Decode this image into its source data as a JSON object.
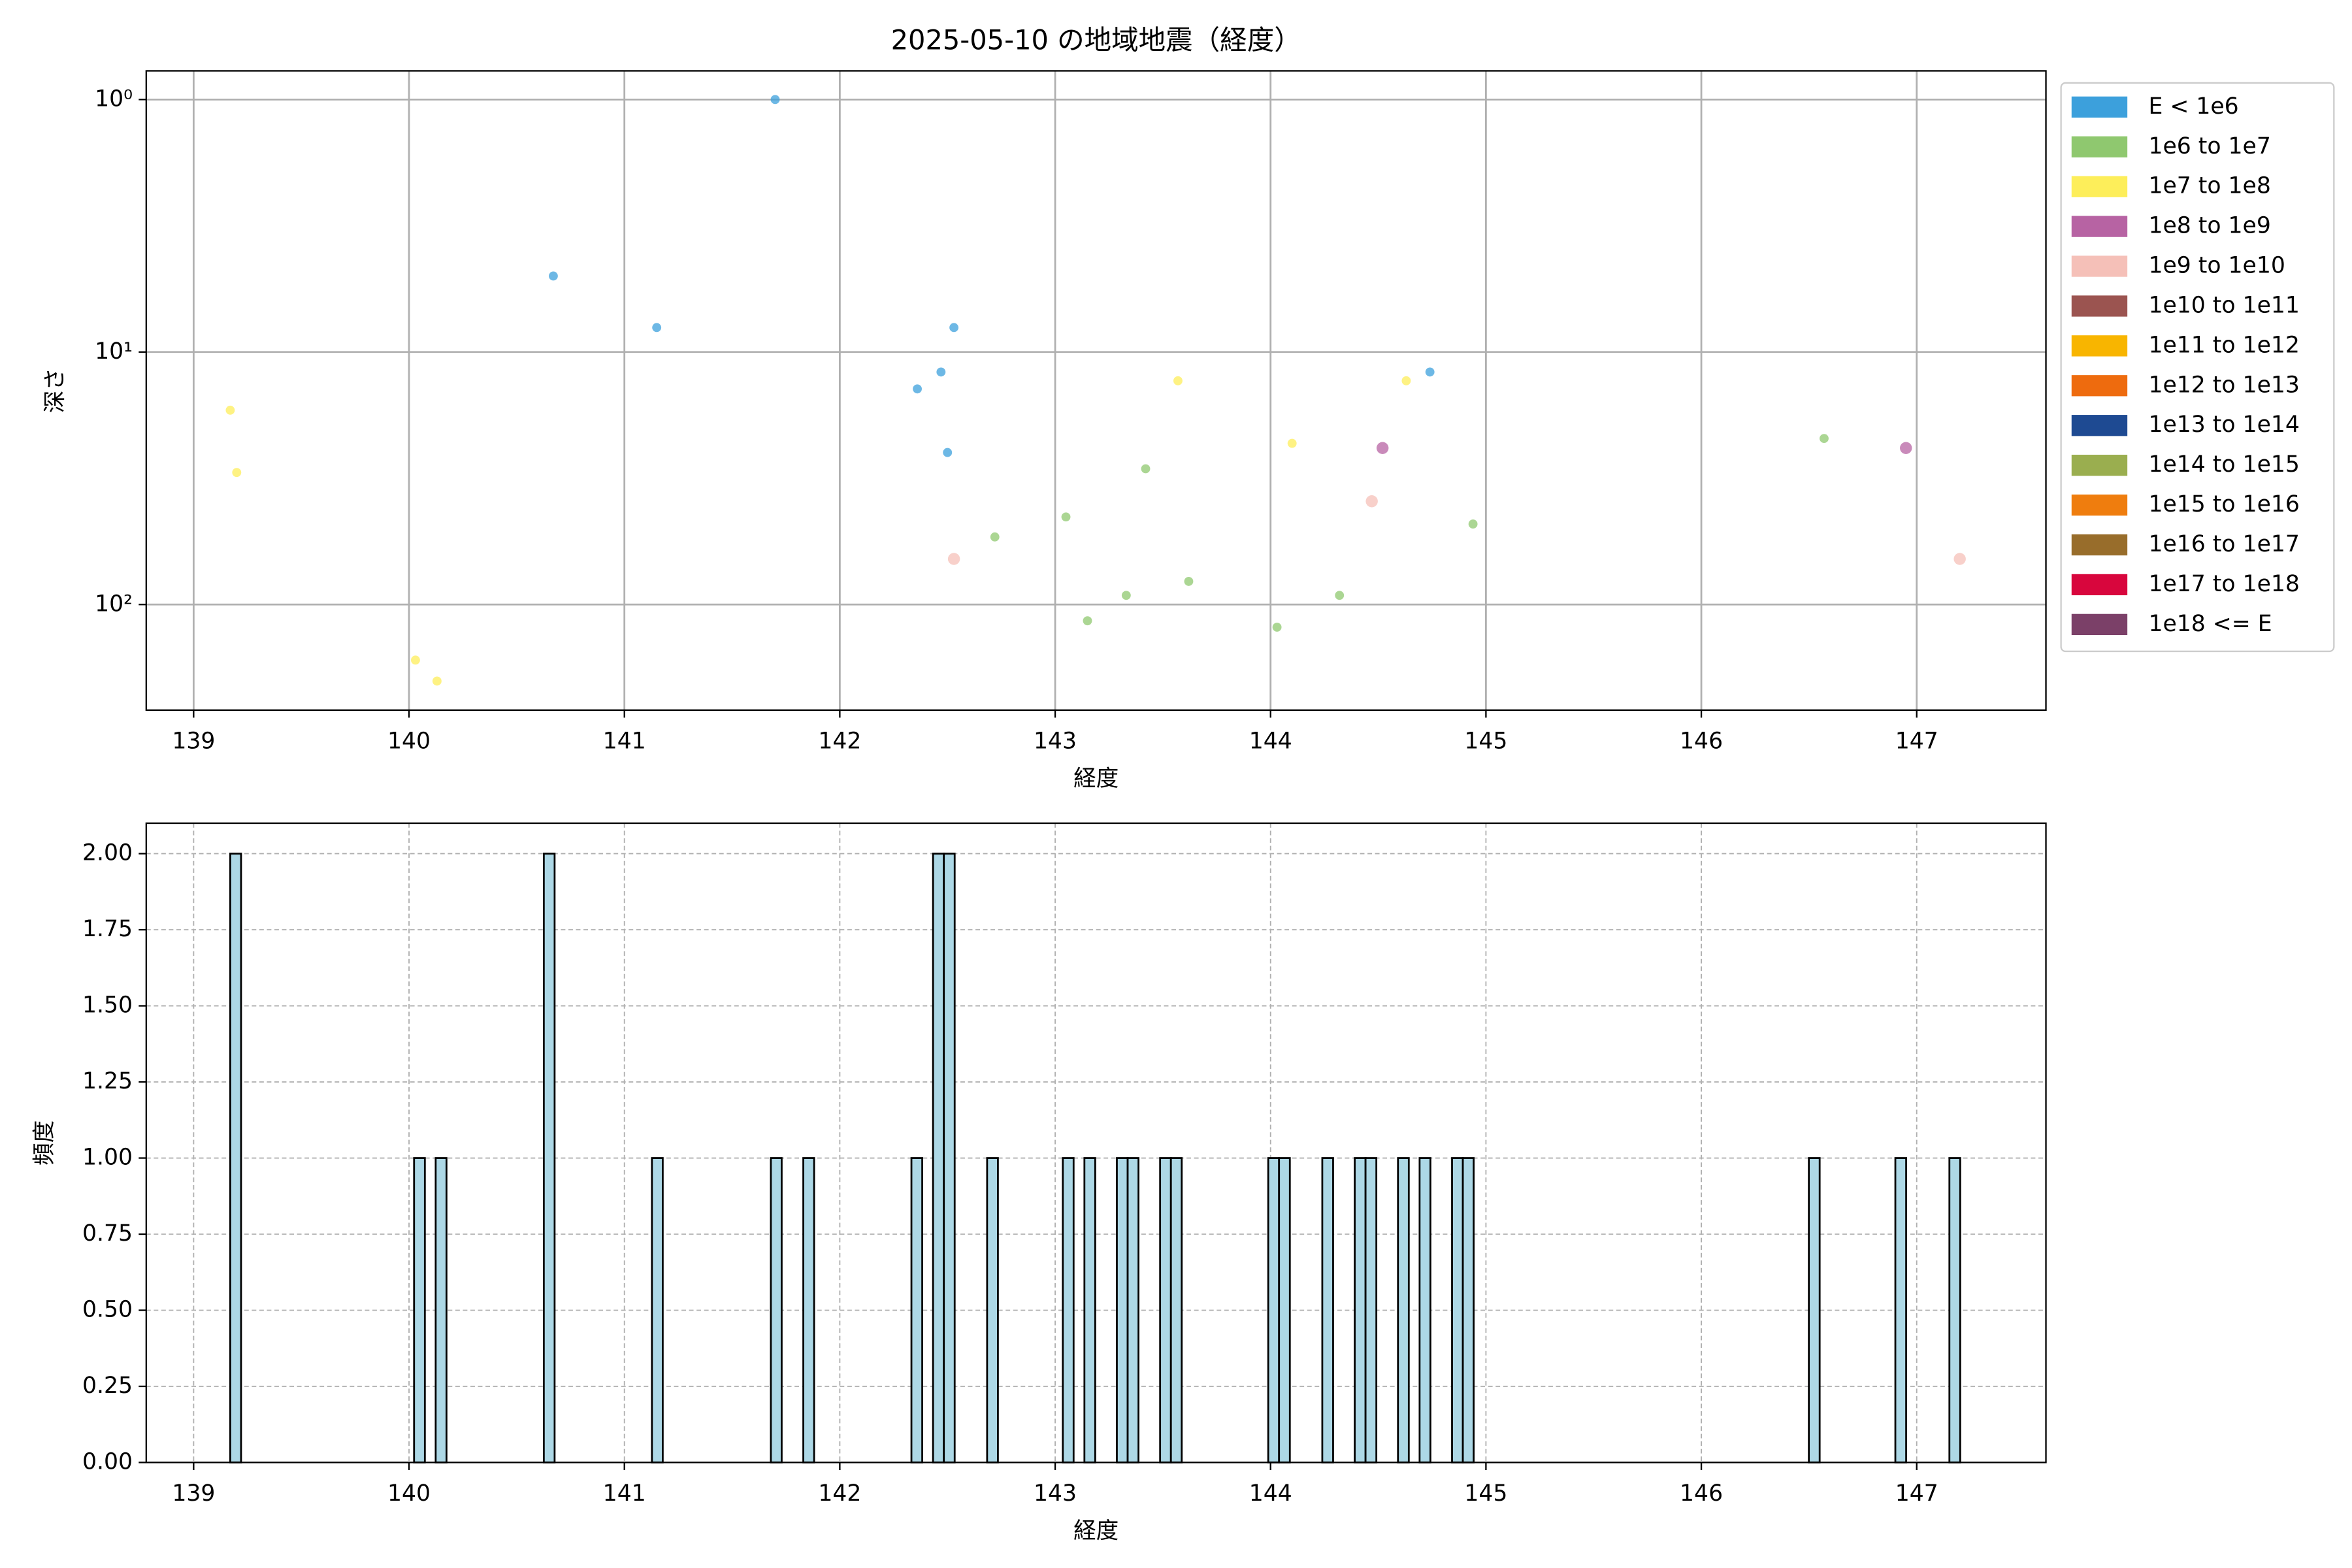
{
  "chart_data": [
    {
      "type": "scatter",
      "title": "2025-05-10 の地域地震（経度）",
      "x_label": "経度",
      "y_label": "深さ",
      "xlim": [
        138.78,
        147.6
      ],
      "xticks": [
        139,
        140,
        141,
        142,
        143,
        144,
        145,
        146,
        147
      ],
      "ylim": [
        0.77,
        262
      ],
      "y_log": true,
      "y_inverted": true,
      "yticks": [
        {
          "value": 1,
          "label": "10⁰"
        },
        {
          "value": 10,
          "label": "10¹"
        },
        {
          "value": 100,
          "label": "10²"
        }
      ],
      "grid": true,
      "legend": "outside-upper-right",
      "series": [
        {
          "name": "E < 1e6",
          "color": "#3ca0dc",
          "x": [
            141.7,
            140.67,
            141.15,
            142.53,
            142.47,
            142.36,
            142.5,
            144.74
          ],
          "values": [
            1.0,
            5.0,
            8.0,
            8.0,
            12,
            14,
            25,
            12
          ]
        },
        {
          "name": "1e6 to 1e7",
          "color": "#8fc86f",
          "x": [
            146.57,
            142.72,
            143.05,
            143.42,
            143.15,
            143.33,
            143.62,
            144.03,
            144.32,
            144.94
          ],
          "values": [
            22,
            54,
            45,
            29,
            116,
            92,
            81,
            123,
            92,
            48
          ]
        },
        {
          "name": "1e7 to 1e8",
          "color": "#fdee5a",
          "x": [
            139.17,
            139.2,
            140.03,
            140.13,
            143.57,
            144.1,
            144.63
          ],
          "values": [
            17,
            30,
            166,
            201,
            13,
            23,
            13
          ]
        },
        {
          "name": "1e8 to 1e9",
          "color": "#b763a3",
          "x": [
            144.52,
            146.95
          ],
          "values": [
            24,
            24
          ]
        },
        {
          "name": "1e9 to 1e10",
          "color": "#f5c0b8",
          "x": [
            142.53,
            144.47,
            147.2
          ],
          "values": [
            66,
            39,
            66
          ]
        },
        {
          "name": "1e10 to 1e11",
          "color": "#9b5450",
          "x": [],
          "values": []
        },
        {
          "name": "1e11 to 1e12",
          "color": "#f8b500",
          "x": [],
          "values": []
        },
        {
          "name": "1e12 to 1e13",
          "color": "#ee6b0e",
          "x": [],
          "values": []
        },
        {
          "name": "1e13 to 1e14",
          "color": "#1e4a92",
          "x": [],
          "values": []
        },
        {
          "name": "1e14 to 1e15",
          "color": "#9aae4f",
          "x": [],
          "values": []
        },
        {
          "name": "1e15 to 1e16",
          "color": "#ef7d0e",
          "x": [],
          "values": []
        },
        {
          "name": "1e16 to 1e17",
          "color": "#986d2b",
          "x": [],
          "values": []
        },
        {
          "name": "1e17 to 1e18",
          "color": "#d8063d",
          "x": [],
          "values": []
        },
        {
          "name": "1e18 <= E",
          "color": "#7b4068",
          "x": [],
          "values": []
        }
      ]
    },
    {
      "type": "histogram",
      "x_label": "経度",
      "y_label": "頻度",
      "color": "#add8e6",
      "edge_color": "#000000",
      "xlim": [
        138.78,
        147.6
      ],
      "xticks": [
        139,
        140,
        141,
        142,
        143,
        144,
        145,
        146,
        147
      ],
      "ylim": [
        0,
        2.1
      ],
      "yticks": [
        {
          "value": 0,
          "label": "0.00"
        },
        {
          "value": 0.25,
          "label": "0.25"
        },
        {
          "value": 0.5,
          "label": "0.50"
        },
        {
          "value": 0.75,
          "label": "0.75"
        },
        {
          "value": 1,
          "label": "1.00"
        },
        {
          "value": 1.25,
          "label": "1.25"
        },
        {
          "value": 1.5,
          "label": "1.50"
        },
        {
          "value": 1.75,
          "label": "1.75"
        },
        {
          "value": 2,
          "label": "2.00"
        }
      ],
      "grid": true,
      "grid_style": "dashed",
      "bins": [
        139.17,
        139.2202,
        139.2704,
        139.3206,
        139.3708,
        139.421,
        139.4712,
        139.5214,
        139.5716,
        139.6218,
        139.672,
        139.7222,
        139.7724,
        139.8226,
        139.8728,
        139.923,
        139.9732,
        140.0234,
        140.0736,
        140.1238,
        140.174,
        140.2242,
        140.2744,
        140.3246,
        140.3748,
        140.425,
        140.4752,
        140.5254,
        140.5756,
        140.6258,
        140.676,
        140.7262,
        140.7764,
        140.8266,
        140.8768,
        140.927,
        140.9772,
        141.0274,
        141.0776,
        141.1278,
        141.178,
        141.2282,
        141.2784,
        141.3286,
        141.3788,
        141.429,
        141.4792,
        141.5294,
        141.5796,
        141.6298,
        141.68,
        141.7302,
        141.7804,
        141.8306,
        141.8808,
        141.931,
        141.9812,
        142.0314,
        142.0816,
        142.1318,
        142.182,
        142.2322,
        142.2824,
        142.3326,
        142.3828,
        142.433,
        142.4832,
        142.5334,
        142.5836,
        142.6338,
        142.684,
        142.7342,
        142.7844,
        142.8346,
        142.8848,
        142.935,
        142.9852,
        143.0354,
        143.0856,
        143.1358,
        143.186,
        143.2362,
        143.2864,
        143.3366,
        143.3868,
        143.437,
        143.4872,
        143.5374,
        143.5876,
        143.6378,
        143.688,
        143.7382,
        143.7884,
        143.8386,
        143.8888,
        143.939,
        143.9892,
        144.0394,
        144.0896,
        144.1398,
        144.19,
        144.2402,
        144.2904,
        144.3406,
        144.3908,
        144.441,
        144.4912,
        144.5414,
        144.5916,
        144.6418,
        144.692,
        144.7422,
        144.7924,
        144.8426,
        144.8928,
        144.943,
        144.9932,
        145.0434,
        145.0936,
        145.1438,
        145.194,
        145.2442,
        145.2944,
        145.3446,
        145.3948,
        145.445,
        145.4952,
        145.5454,
        145.5956,
        145.6458,
        145.696,
        145.7462,
        145.7964,
        145.8466,
        145.8968,
        145.947,
        145.9972,
        146.0474,
        146.0976,
        146.1478,
        146.198,
        146.2482,
        146.2984,
        146.3486,
        146.3988,
        146.449,
        146.4992,
        146.5494,
        146.5996,
        146.6498,
        146.7,
        146.7502,
        146.8004,
        146.8506,
        146.9008,
        146.951,
        147.0012,
        147.0514,
        147.1016,
        147.1518,
        147.202
      ],
      "values": [
        2,
        0,
        0,
        0,
        0,
        0,
        0,
        0,
        0,
        0,
        0,
        0,
        0,
        0,
        0,
        0,
        0,
        1,
        0,
        1,
        0,
        0,
        0,
        0,
        0,
        0,
        0,
        0,
        0,
        2,
        0,
        0,
        0,
        0,
        0,
        0,
        0,
        0,
        0,
        1,
        0,
        0,
        0,
        0,
        0,
        0,
        0,
        0,
        0,
        0,
        1,
        0,
        0,
        1,
        0,
        0,
        0,
        0,
        0,
        0,
        0,
        0,
        0,
        1,
        0,
        2,
        2,
        0,
        0,
        0,
        1,
        0,
        0,
        0,
        0,
        0,
        0,
        1,
        0,
        1,
        0,
        0,
        1,
        1,
        0,
        0,
        1,
        1,
        0,
        0,
        0,
        0,
        0,
        0,
        0,
        0,
        1,
        1,
        0,
        0,
        0,
        1,
        0,
        0,
        1,
        1,
        0,
        0,
        1,
        0,
        1,
        0,
        0,
        1,
        1,
        0,
        0,
        0,
        0,
        0,
        0,
        0,
        0,
        0,
        0,
        0,
        0,
        0,
        0,
        0,
        0,
        0,
        0,
        0,
        0,
        0,
        0,
        0,
        0,
        0,
        0,
        0,
        0,
        0,
        0,
        0,
        1,
        0,
        0,
        0,
        0,
        0,
        0,
        0,
        1,
        0,
        0,
        0,
        0,
        1
      ]
    }
  ]
}
